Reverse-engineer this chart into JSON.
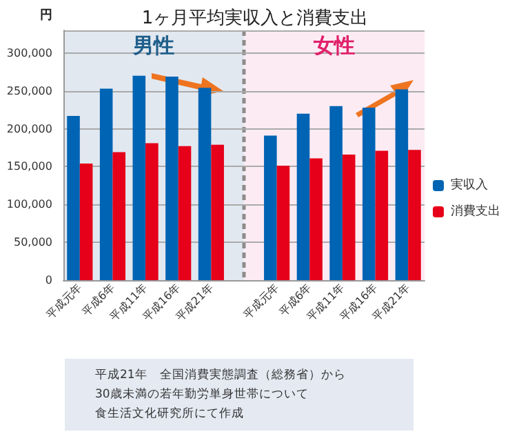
{
  "chart_data": {
    "type": "bar",
    "title": "1ヶ月平均実収入と消費支出",
    "ylabel": "円",
    "categories": [
      "平成元年",
      "平成6年",
      "平成11年",
      "平成16年",
      "平成21年",
      null,
      "平成元年",
      "平成6年",
      "平成11年",
      "平成16年",
      "平成21年"
    ],
    "series": [
      {
        "name": "実収入",
        "color": "#0064b4",
        "values": [
          217000,
          253000,
          270000,
          269000,
          254000,
          null,
          191000,
          220000,
          230000,
          228000,
          252000
        ]
      },
      {
        "name": "消費支出",
        "color": "#e60019",
        "values": [
          154000,
          169000,
          181000,
          177000,
          179000,
          null,
          151000,
          161000,
          166000,
          171000,
          172000
        ]
      }
    ],
    "ylim": [
      0,
      330000
    ],
    "yticks": [
      {
        "value": 0,
        "label": "0"
      },
      {
        "value": 50000,
        "label": "50,000"
      },
      {
        "value": 100000,
        "label": "100,000"
      },
      {
        "value": 150000,
        "label": "150,000"
      },
      {
        "value": 200000,
        "label": "200,000"
      },
      {
        "value": 250000,
        "label": "250,000"
      },
      {
        "value": 300000,
        "label": "300,000"
      }
    ],
    "grid": "y",
    "legend": "right",
    "annotations": [
      "男性",
      "女性",
      "平成21年　全国消費実態調査（総務省）から",
      "30歳未満の若年勤労単身世帯について",
      "食生活文化研究所にて作成"
    ]
  }
}
